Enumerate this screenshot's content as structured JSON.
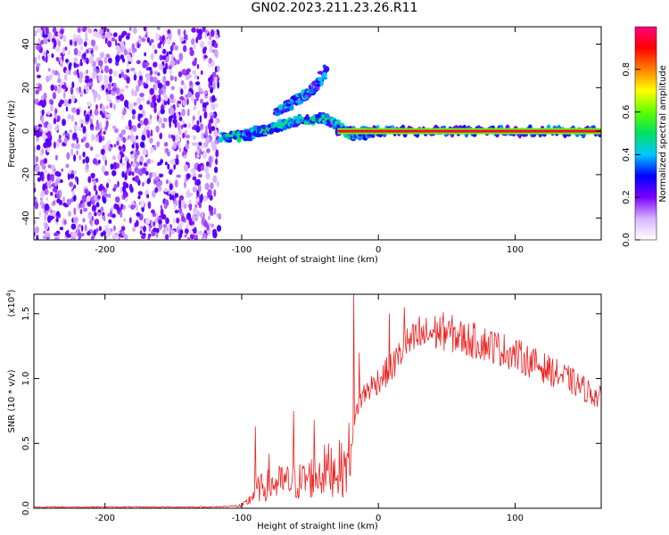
{
  "title": "GN02.2023.211.23.26.R11",
  "chart_data": [
    {
      "type": "heatmap",
      "xlabel": "Height of straight line (km)",
      "ylabel": "Frequency (Hz)",
      "xlim": [
        -252,
        163
      ],
      "ylim": [
        -50,
        48
      ],
      "x_ticks": [
        "-200",
        "-100",
        "0",
        "100"
      ],
      "x_tick_values": [
        -200,
        -100,
        0,
        100
      ],
      "y_ticks": [
        "-40",
        "-20",
        "0",
        "20",
        "40"
      ],
      "y_tick_values": [
        -40,
        -20,
        0,
        20,
        40
      ],
      "colorbar": {
        "label": "Normalized spectral amplitude",
        "range": [
          0.0,
          1.0
        ],
        "ticks": [
          "0.0",
          "0.2",
          "0.4",
          "0.6",
          "0.8"
        ],
        "tick_values": [
          0.0,
          0.2,
          0.4,
          0.6,
          0.8
        ],
        "colors": [
          "#ffffff",
          "#d8b4ff",
          "#7a00ff",
          "#0000ff",
          "#00c8ff",
          "#00e060",
          "#60ff00",
          "#ffff00",
          "#ff8000",
          "#ff0000",
          "#ff0080"
        ]
      },
      "features": [
        {
          "description": "scattered noise",
          "x_range": [
            -252,
            -117
          ],
          "y_range": [
            -50,
            48
          ],
          "amplitude": 0.2
        },
        {
          "description": "ridge",
          "points": [
            [
              -115,
              -3
            ],
            [
              -100,
              -2
            ],
            [
              -85,
              0
            ],
            [
              -70,
              3
            ],
            [
              -55,
              5
            ],
            [
              -40,
              6
            ],
            [
              -33,
              4
            ],
            [
              -25,
              0
            ],
            [
              -15,
              -2
            ],
            [
              0,
              0
            ]
          ],
          "amplitude": 0.35
        },
        {
          "description": "harmonic",
          "points": [
            [
              -75,
              9
            ],
            [
              -65,
              12
            ],
            [
              -50,
              18
            ],
            [
              -43,
              23
            ],
            [
              -37,
              30
            ]
          ],
          "amplitude": 0.3
        },
        {
          "description": "tone",
          "x_range": [
            -30,
            163
          ],
          "y": 0,
          "amplitude": 0.95
        }
      ]
    },
    {
      "type": "line",
      "xlabel": "Height of straight line (km)",
      "ylabel": "SNR (10 * v/v)",
      "scale_label": "(x10",
      "scale_exponent": "4",
      "scale_suffix": ")",
      "xlim": [
        -252,
        163
      ],
      "ylim": [
        0,
        1.65
      ],
      "x_ticks": [
        "-200",
        "-100",
        "0",
        "100"
      ],
      "x_tick_values": [
        -200,
        -100,
        0,
        100
      ],
      "y_ticks": [
        "0.0",
        "0.5",
        "1.0",
        "1.5"
      ],
      "y_tick_values": [
        0.0,
        0.5,
        1.0,
        1.5
      ],
      "color": "#ee2222",
      "envelope": {
        "x": [
          -252,
          -120,
          -100,
          -95,
          -90,
          -80,
          -70,
          -60,
          -50,
          -40,
          -30,
          -25,
          -20,
          -15,
          -10,
          -5,
          0,
          10,
          20,
          30,
          40,
          50,
          60,
          80,
          100,
          120,
          140,
          163
        ],
        "y": [
          0.01,
          0.01,
          0.02,
          0.06,
          0.15,
          0.2,
          0.22,
          0.22,
          0.26,
          0.32,
          0.35,
          0.32,
          0.5,
          0.8,
          0.9,
          0.95,
          1.0,
          1.1,
          1.27,
          1.33,
          1.37,
          1.38,
          1.33,
          1.28,
          1.2,
          1.1,
          1.0,
          0.85
        ]
      },
      "spikes": [
        {
          "x": -90,
          "y": 0.63
        },
        {
          "x": -80,
          "y": 0.42
        },
        {
          "x": -62,
          "y": 0.75
        },
        {
          "x": -47,
          "y": 0.68
        },
        {
          "x": -18,
          "y": 1.65
        },
        {
          "x": -14,
          "y": 1.2
        },
        {
          "x": 8,
          "y": 1.5
        },
        {
          "x": 19,
          "y": 1.55
        },
        {
          "x": 30,
          "y": 1.48
        },
        {
          "x": 52,
          "y": 1.43
        }
      ]
    }
  ]
}
